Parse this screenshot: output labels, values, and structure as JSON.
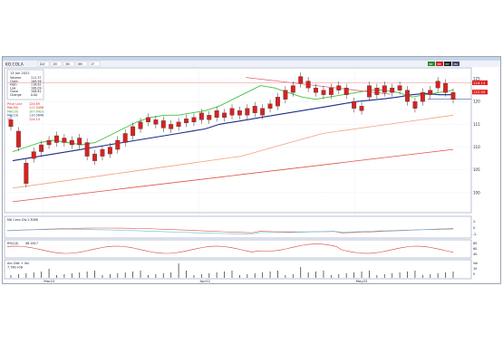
{
  "window": {
    "symbol": "KO.COLA",
    "toolbar_fields": [
      "DLY",
      "1M",
      "3M",
      "6M",
      "1Y"
    ],
    "buttons_right": [
      "BE",
      "BB",
      "BT",
      "MA"
    ]
  },
  "info_box": {
    "date": "13 Jun 2022",
    "rows": [
      {
        "label": "Volume",
        "value": "111.37"
      },
      {
        "label": "Open",
        "value": "108.56"
      },
      {
        "label": "High",
        "value": "116.82"
      },
      {
        "label": "Low",
        "value": "108.09"
      },
      {
        "label": "Close",
        "value": "108.81"
      },
      {
        "label": "Change",
        "value": "0.00"
      }
    ]
  },
  "legend": [
    {
      "label": "Price Line",
      "value": "124.69",
      "color": "#dd2222"
    },
    {
      "label": "MA(50)",
      "value": "117.3456",
      "color": "#dd2222"
    },
    {
      "label": "MA(20)",
      "value": "107.6423",
      "color": "#22aa22"
    },
    {
      "label": "MA(10)",
      "value": "110.0646",
      "color": "#2233aa"
    },
    {
      "label": "TL",
      "value": "124.14",
      "color": "#dd2222"
    }
  ],
  "price_labels": [
    {
      "value": "124.14",
      "color": "#dd2222"
    },
    {
      "value": "122.09",
      "color": "#dd2222"
    }
  ],
  "y_axis_labels": [
    "125",
    "120",
    "115",
    "110",
    "105",
    "100"
  ],
  "x_axis_labels": [
    "Mar22",
    "Apr22",
    "May22"
  ],
  "panels": {
    "macd": {
      "label": "MA Conv Div",
      "value": "1.3066",
      "ticks": [
        "2.",
        "0.",
        "-2."
      ]
    },
    "rsi": {
      "label": "RSI(14)",
      "value": "48.1817",
      "ticks": [
        "80.",
        "60.",
        "40."
      ]
    },
    "volume": {
      "label": "Acc Dist + Vol",
      "value": "7.74E+08",
      "ticks": [
        "Vol",
        "10",
        "5"
      ]
    }
  },
  "chart_data": {
    "type": "candlestick",
    "candles": [
      [
        116.0,
        114.5
      ],
      [
        113.5,
        110.0
      ],
      [
        106.5,
        102.0
      ],
      [
        109.0,
        107.5
      ],
      [
        110.5,
        109.0
      ],
      [
        111.5,
        110.5
      ],
      [
        112.5,
        111.0
      ],
      [
        112.0,
        111.0
      ],
      [
        111.5,
        110.5
      ],
      [
        112.0,
        110.5
      ],
      [
        111.0,
        108.0
      ],
      [
        108.5,
        107.0
      ],
      [
        109.5,
        108.0
      ],
      [
        110.0,
        108.5
      ],
      [
        111.5,
        109.5
      ],
      [
        113.0,
        111.0
      ],
      [
        114.5,
        112.5
      ],
      [
        115.5,
        114.0
      ],
      [
        116.5,
        115.5
      ],
      [
        116.0,
        115.0
      ],
      [
        115.8,
        114.2
      ],
      [
        115.0,
        114.0
      ],
      [
        115.5,
        114.5
      ],
      [
        116.2,
        115.3
      ],
      [
        116.5,
        115.5
      ],
      [
        117.5,
        116.0
      ],
      [
        117.0,
        116.0
      ],
      [
        118.0,
        116.5
      ],
      [
        117.5,
        116.5
      ],
      [
        118.5,
        117.0
      ],
      [
        118.0,
        117.0
      ],
      [
        118.5,
        117.0
      ],
      [
        119.0,
        117.5
      ],
      [
        118.5,
        117.0
      ],
      [
        119.5,
        118.5
      ],
      [
        121.0,
        119.0
      ],
      [
        122.5,
        120.5
      ],
      [
        123.5,
        122.0
      ],
      [
        125.5,
        124.0
      ],
      [
        124.5,
        123.0
      ],
      [
        123.0,
        122.0
      ],
      [
        122.5,
        121.5
      ],
      [
        123.0,
        121.5
      ],
      [
        123.5,
        122.5
      ],
      [
        123.0,
        121.5
      ],
      [
        120.0,
        118.5
      ],
      [
        119.0,
        118.0
      ],
      [
        123.5,
        121.0
      ],
      [
        123.0,
        121.5
      ],
      [
        123.5,
        122.0
      ],
      [
        123.0,
        122.0
      ],
      [
        123.5,
        122.5
      ],
      [
        122.5,
        120.0
      ],
      [
        120.0,
        118.5
      ],
      [
        122.0,
        120.0
      ],
      [
        122.5,
        121.5
      ],
      [
        124.5,
        123.0
      ],
      [
        124.0,
        122.0
      ],
      [
        122.0,
        120.5
      ]
    ],
    "ma_blue": [
      107,
      107.5,
      108,
      108.5,
      109,
      109.5,
      110,
      110.5,
      111,
      111.5,
      112,
      112.5,
      113,
      113.5,
      114,
      115,
      115.5,
      116,
      116.5,
      117,
      117.5,
      118,
      118.5,
      119,
      119.5,
      120,
      120.3,
      120.6,
      121,
      121.5,
      121.8,
      121.5,
      121.5
    ],
    "ma_green": [
      109,
      110,
      111,
      111.5,
      111,
      110.5,
      111,
      112.5,
      114,
      115.5,
      116.5,
      117,
      117,
      117.5,
      118,
      119,
      120.5,
      122,
      123.5,
      123,
      122,
      121,
      120.5,
      121,
      121.5,
      122,
      122.5,
      122.5,
      122,
      121,
      121.5,
      122,
      122.5
    ],
    "ma_orange": [
      101,
      101.5,
      102,
      102.5,
      103,
      103.5,
      104,
      104.5,
      105,
      105.5,
      106,
      106.5,
      107,
      107.5,
      108,
      109,
      110,
      111,
      112,
      113,
      113.5,
      114,
      114.5,
      115,
      115.5,
      116,
      116.5,
      117
    ],
    "ma_red": [
      98,
      98.5,
      99,
      99.5,
      100,
      100.5,
      101,
      101.5,
      102,
      102.5,
      103,
      103.5,
      104,
      104.5,
      105,
      105.5,
      106,
      106.5,
      107,
      107.5,
      108,
      108.5,
      109,
      109.5
    ],
    "trendline": [
      [
        0.535,
        125.3
      ],
      [
        0.86,
        121.6
      ]
    ],
    "ylim": [
      96,
      127
    ]
  }
}
